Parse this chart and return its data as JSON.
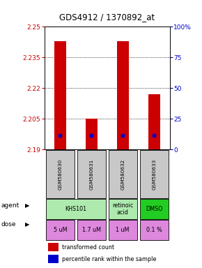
{
  "title": "GDS4912 / 1370892_at",
  "samples": [
    "GSM580630",
    "GSM580631",
    "GSM580632",
    "GSM580633"
  ],
  "red_values": [
    2.243,
    2.205,
    2.243,
    2.217
  ],
  "blue_values": [
    2.197,
    2.197,
    2.197,
    2.197
  ],
  "red_base": 2.19,
  "ylim_min": 2.19,
  "ylim_max": 2.25,
  "y_ticks_left": [
    2.19,
    2.205,
    2.22,
    2.235,
    2.25
  ],
  "y_ticks_right": [
    0,
    25,
    50,
    75,
    100
  ],
  "agent_configs": [
    {
      "start": 0,
      "end": 1,
      "label": "KHS101",
      "color": "#aeeaae"
    },
    {
      "start": 2,
      "end": 2,
      "label": "retinoic\nacid",
      "color": "#aeeaae"
    },
    {
      "start": 3,
      "end": 3,
      "label": "DMSO",
      "color": "#22cc22"
    }
  ],
  "doses": [
    "5 uM",
    "1.7 uM",
    "1 uM",
    "0.1 %"
  ],
  "dose_color": "#dd88dd",
  "sample_label_color": "#c8c8c8",
  "bar_color": "#cc0000",
  "blue_marker_color": "#0000cc",
  "title_color": "#000000",
  "left_axis_color": "#cc0000",
  "right_axis_color": "#0000cc"
}
